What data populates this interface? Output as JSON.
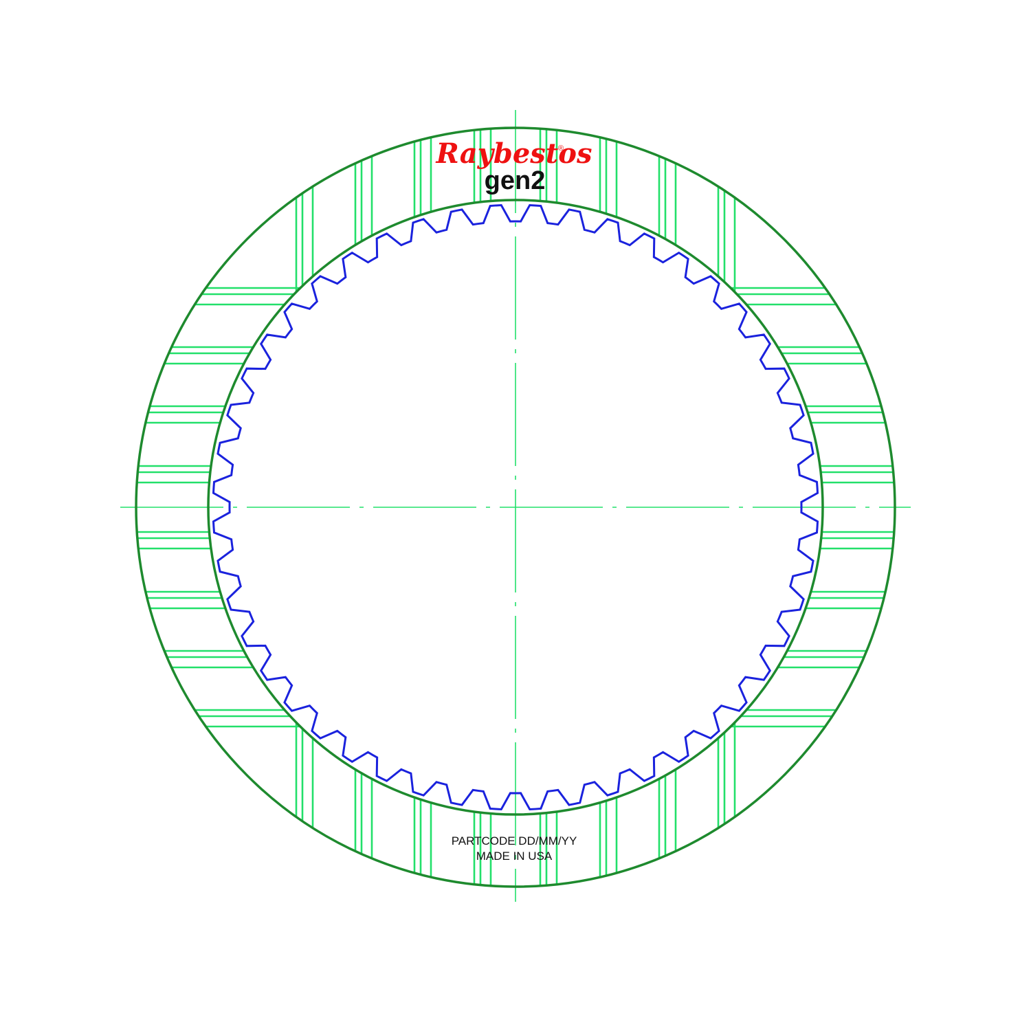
{
  "brand": {
    "logo_text": "Raybestos",
    "registered_mark": "®",
    "product_line": "gen2"
  },
  "plate_marking": {
    "line1": "PARTCODE DD/MM/YY",
    "line2": "MADE IN USA"
  },
  "plate": {
    "internal_teeth_count": 48,
    "groove_pattern": "waffle",
    "groove_lines_per_band": 3
  },
  "colors": {
    "ring_outline": "#1e8a2e",
    "grooves": "#22e06a",
    "centerlines": "#22e06a",
    "teeth": "#1a22dd",
    "logo": "#ee1111",
    "text": "#111111"
  }
}
